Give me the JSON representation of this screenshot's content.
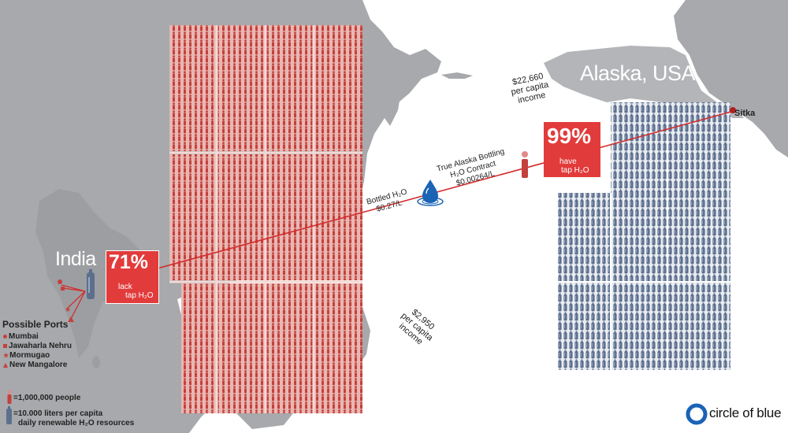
{
  "india": {
    "name": "India",
    "percent": "71%",
    "caption_1": "lack",
    "caption_2": "tap H₂O"
  },
  "alaska": {
    "name": "Alaska, USA",
    "percent": "99%",
    "caption_1": "have",
    "caption_2": "tap H₂O",
    "city": "Sitka"
  },
  "income": {
    "alaska_amount": "$22,660",
    "alaska_line2": "per capita",
    "alaska_line3": "income",
    "india_amount": "$2,950",
    "india_line2": "per capita",
    "india_line3": "income"
  },
  "prices": {
    "bottled_line1": "Bottled H₂O",
    "bottled_line2": "$0.27/L",
    "contract_line1": "True Alaska Bottling",
    "contract_line2": "H₂O Contract",
    "contract_line3": "$0.00264/L"
  },
  "ports": {
    "title": "Possible Ports",
    "items": [
      {
        "name": "Mumbai",
        "marker": "circle"
      },
      {
        "name": "Jawaharla Nehru",
        "marker": "square"
      },
      {
        "name": "Mormugao",
        "marker": "star"
      },
      {
        "name": "New Mangalore",
        "marker": "triangle"
      }
    ]
  },
  "legend": {
    "person_label": "=1,000,000 people",
    "bottle_label_1": "=10.000 liters per capita",
    "bottle_label_2": "daily renewable H₂O resources"
  },
  "brand": {
    "name": "circle of blue",
    "color": "#1a63b5"
  },
  "colors": {
    "land": "#a7a9ac",
    "sea": "#ffffff",
    "people": "#c9413e",
    "bottles": "#5c6f8d",
    "highlight": "#e23b3b",
    "route": "#d32d2d"
  }
}
